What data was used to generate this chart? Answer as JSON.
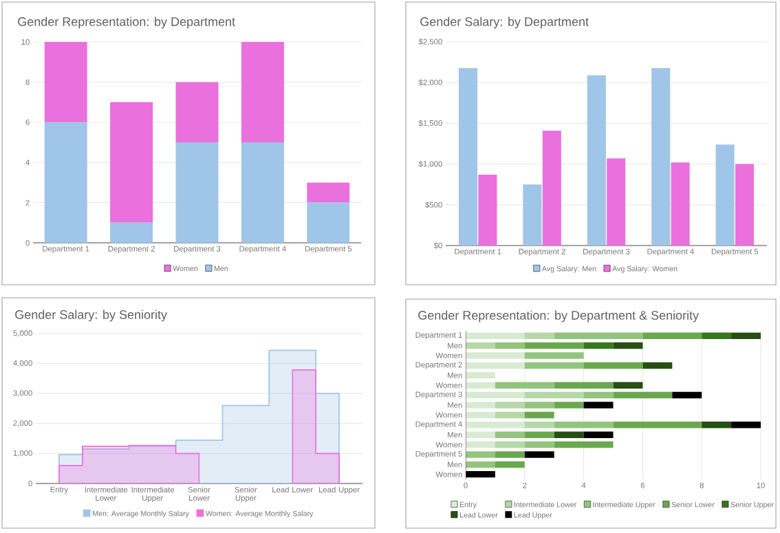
{
  "chart_data": [
    {
      "type": "bar",
      "title": "Gender Representation: by Department",
      "categories": [
        "Department 1",
        "Department 2",
        "Department 3",
        "Department 4",
        "Department 5"
      ],
      "stacked": true,
      "series": [
        {
          "name": "Men",
          "color": "#9fc5e8",
          "values": [
            6,
            1,
            5,
            5,
            2
          ]
        },
        {
          "name": "Women",
          "color": "#ea70dd",
          "values": [
            4,
            6,
            3,
            5,
            1
          ]
        }
      ],
      "ylim": [
        0,
        10
      ],
      "yticks": [
        0,
        2,
        4,
        6,
        8,
        10
      ],
      "grid": "y",
      "legend": "bottom"
    },
    {
      "type": "bar",
      "title": "Gender Salary: by Department",
      "categories": [
        "Department 1",
        "Department 2",
        "Department 3",
        "Department 4",
        "Department 5"
      ],
      "series": [
        {
          "name": "Avg Salary: Men",
          "color": "#9fc5e8",
          "values": [
            2180,
            750,
            2090,
            2180,
            1240
          ]
        },
        {
          "name": "Avg Salary: Women",
          "color": "#ea70dd",
          "values": [
            870,
            1410,
            1070,
            1020,
            1000
          ]
        }
      ],
      "ylim": [
        0,
        2500
      ],
      "yticks": [
        {
          "value": 0,
          "label": "$0"
        },
        {
          "value": 500,
          "label": "$500"
        },
        {
          "value": 1000,
          "label": "$1,000"
        },
        {
          "value": 1500,
          "label": "$1,500"
        },
        {
          "value": 2000,
          "label": "$2,000"
        },
        {
          "value": 2500,
          "label": "$2,500"
        }
      ],
      "grid": "y",
      "legend": "bottom"
    },
    {
      "type": "area",
      "title": "Gender Salary: by Seniority",
      "categories": [
        "Entry",
        "Intermediate Lower",
        "Intermediate Upper",
        "Senior Lower",
        "Senior Upper",
        "Lead Lower",
        "Lead Upper"
      ],
      "series": [
        {
          "name": "Men: Average Monthly Salary",
          "color": "#9fc5e8",
          "values": [
            960,
            1150,
            1250,
            1440,
            2600,
            4440,
            3000
          ]
        },
        {
          "name": "Women: Average Monthly Salary",
          "color": "#ea70dd",
          "values": [
            600,
            1240,
            1270,
            1000,
            null,
            3790,
            1000
          ]
        }
      ],
      "ylim": [
        0,
        5000
      ],
      "yticks": [
        0,
        {
          "value": 1000,
          "label": "1,000"
        },
        {
          "value": 2000,
          "label": "2,000"
        },
        {
          "value": 3000,
          "label": "3,000"
        },
        {
          "value": 4000,
          "label": "4,000"
        },
        {
          "value": 5000,
          "label": "5,000"
        }
      ],
      "grid": "y",
      "legend": "bottom"
    },
    {
      "type": "bar",
      "orientation": "horizontal",
      "stacked": true,
      "title": "Gender Representation: by Department & Seniority",
      "categories": [
        "Department 1",
        "Men",
        "Women",
        "Department 2",
        "Men",
        "Women",
        "Department 3",
        "Men",
        "Women",
        "Department 4",
        "Men",
        "Women",
        "Department 5",
        "Men",
        "Women"
      ],
      "series": [
        {
          "name": "Entry",
          "color": "#d9ead3",
          "values": [
            2,
            null,
            2,
            2,
            1,
            1,
            2,
            1,
            1,
            2,
            1,
            1,
            null,
            null,
            null
          ]
        },
        {
          "name": "Intermediate Lower",
          "color": "#b6d7a8",
          "values": [
            1,
            1,
            null,
            null,
            null,
            null,
            2,
            1,
            1,
            1,
            null,
            1,
            null,
            null,
            null
          ]
        },
        {
          "name": "Intermediate Upper",
          "color": "#93c47d",
          "values": [
            3,
            1,
            2,
            2,
            null,
            2,
            1,
            1,
            null,
            2,
            1,
            1,
            1,
            1,
            null
          ]
        },
        {
          "name": "Senior Lower",
          "color": "#6aa84f",
          "values": [
            2,
            2,
            null,
            2,
            null,
            2,
            2,
            1,
            1,
            3,
            1,
            2,
            1,
            1,
            null
          ]
        },
        {
          "name": "Senior Upper",
          "color": "#38761d",
          "values": [
            1,
            1,
            null,
            null,
            null,
            null,
            null,
            null,
            null,
            null,
            null,
            null,
            null,
            null,
            null
          ]
        },
        {
          "name": "Lead Lower",
          "color": "#274e13",
          "values": [
            1,
            1,
            null,
            1,
            null,
            1,
            null,
            null,
            null,
            1,
            1,
            null,
            null,
            null,
            null
          ]
        },
        {
          "name": "Lead Upper",
          "color": "#000000",
          "values": [
            null,
            null,
            null,
            null,
            null,
            null,
            1,
            1,
            null,
            1,
            1,
            null,
            1,
            null,
            1
          ]
        }
      ],
      "xlim": [
        0,
        10
      ],
      "xticks": [
        0,
        2,
        4,
        6,
        8,
        10
      ],
      "grid": "x",
      "legend": "bottom"
    }
  ]
}
